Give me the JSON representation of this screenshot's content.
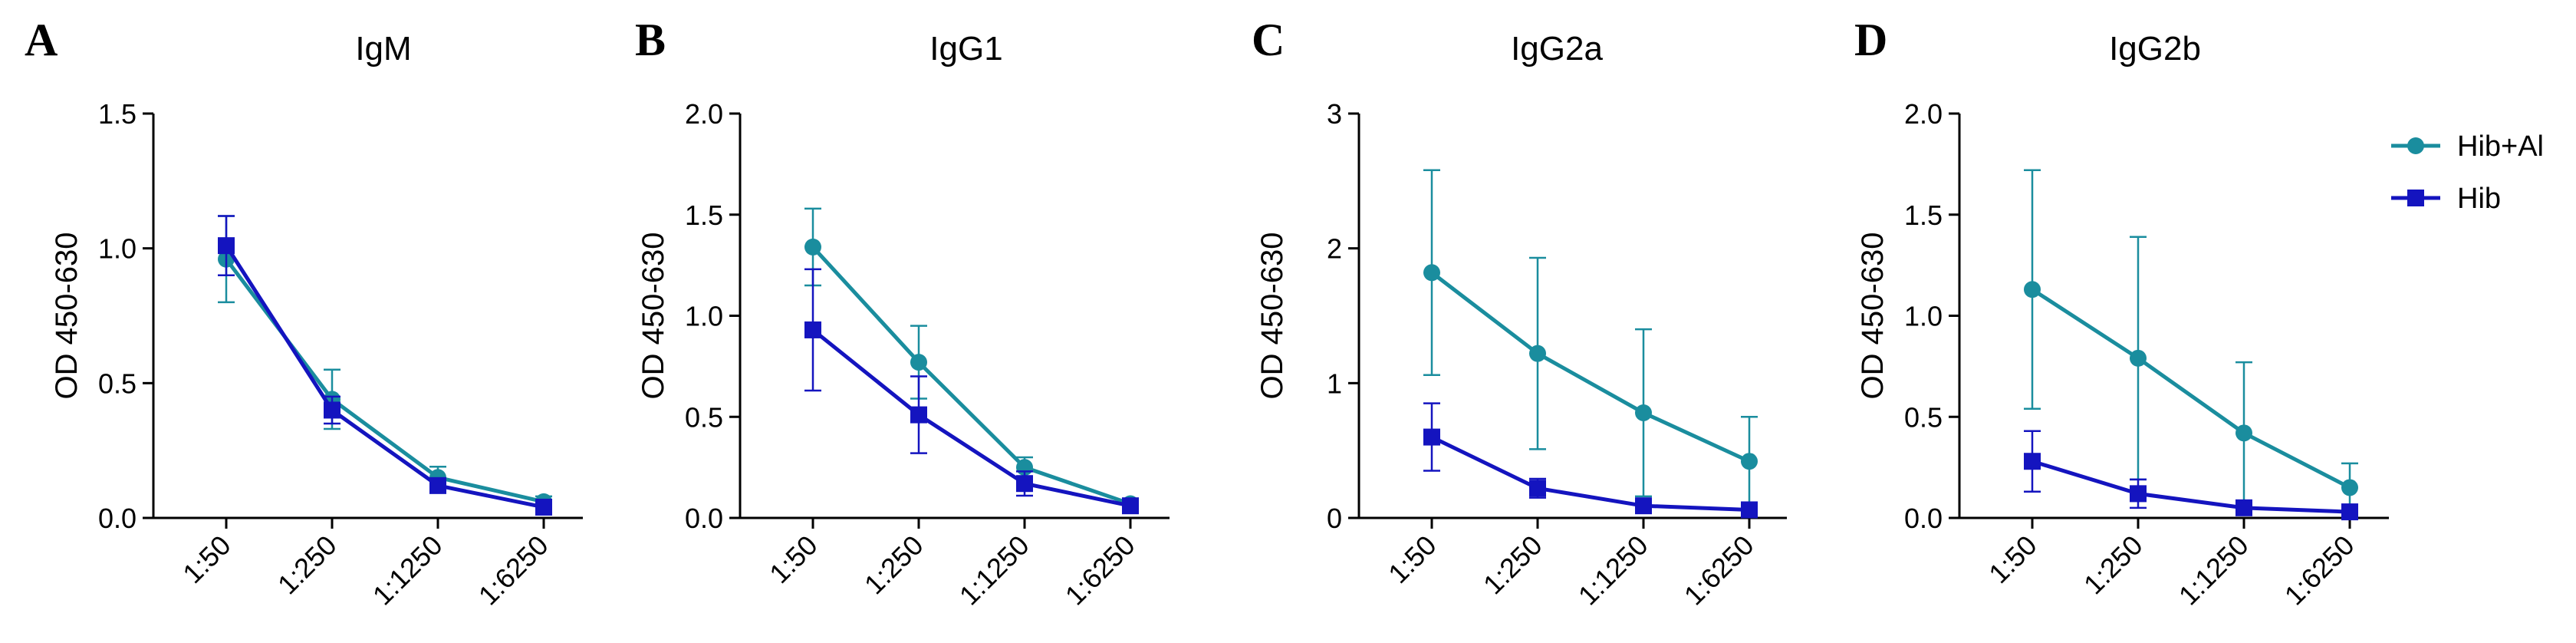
{
  "legend": {
    "entries": [
      {
        "label": "Hib+Al",
        "color": "#1a8d9e",
        "marker": "circle"
      },
      {
        "label": "Hib",
        "color": "#1414bf",
        "marker": "square"
      }
    ]
  },
  "chart_data": [
    {
      "panel": "A",
      "type": "line",
      "title": "IgM",
      "ylabel": "OD 450-630",
      "xlabel": "",
      "categories": [
        "1:50",
        "1:250",
        "1:1250",
        "1:6250"
      ],
      "ylim": [
        0,
        1.5
      ],
      "yticks": [
        0,
        0.5,
        1.0,
        1.5
      ],
      "ytick_labels": [
        "0.0",
        "0.5",
        "1.0",
        "1.5"
      ],
      "series": [
        {
          "name": "Hib+Al",
          "color": "#1a8d9e",
          "marker": "circle",
          "values": [
            0.96,
            0.44,
            0.15,
            0.06
          ],
          "errors": [
            0.16,
            0.11,
            0.04,
            0.02
          ]
        },
        {
          "name": "Hib",
          "color": "#1414bf",
          "marker": "square",
          "values": [
            1.01,
            0.4,
            0.12,
            0.04
          ],
          "errors": [
            0.11,
            0.05,
            0.02,
            0.01
          ]
        }
      ]
    },
    {
      "panel": "B",
      "type": "line",
      "title": "IgG1",
      "ylabel": "OD 450-630",
      "xlabel": "",
      "categories": [
        "1:50",
        "1:250",
        "1:1250",
        "1:6250"
      ],
      "ylim": [
        0,
        2.0
      ],
      "yticks": [
        0,
        0.5,
        1.0,
        1.5,
        2.0
      ],
      "ytick_labels": [
        "0.0",
        "0.5",
        "1.0",
        "1.5",
        "2.0"
      ],
      "series": [
        {
          "name": "Hib+Al",
          "color": "#1a8d9e",
          "marker": "circle",
          "values": [
            1.34,
            0.77,
            0.25,
            0.07
          ],
          "errors": [
            0.19,
            0.18,
            0.05,
            0.01
          ]
        },
        {
          "name": "Hib",
          "color": "#1414bf",
          "marker": "square",
          "values": [
            0.93,
            0.51,
            0.17,
            0.06
          ],
          "errors": [
            0.3,
            0.19,
            0.06,
            0.01
          ]
        }
      ]
    },
    {
      "panel": "C",
      "type": "line",
      "title": "IgG2a",
      "ylabel": "OD 450-630",
      "xlabel": "",
      "categories": [
        "1:50",
        "1:250",
        "1:1250",
        "1:6250"
      ],
      "ylim": [
        0,
        3
      ],
      "yticks": [
        0,
        1,
        2,
        3
      ],
      "ytick_labels": [
        "0",
        "1",
        "2",
        "3"
      ],
      "series": [
        {
          "name": "Hib+Al",
          "color": "#1a8d9e",
          "marker": "circle",
          "values": [
            1.82,
            1.22,
            0.78,
            0.42
          ],
          "errors": [
            0.76,
            0.71,
            0.62,
            0.33
          ]
        },
        {
          "name": "Hib",
          "color": "#1414bf",
          "marker": "square",
          "values": [
            0.6,
            0.22,
            0.09,
            0.06
          ],
          "errors": [
            0.25,
            0.07,
            0.04,
            0.02
          ]
        }
      ]
    },
    {
      "panel": "D",
      "type": "line",
      "title": "IgG2b",
      "ylabel": "OD 450-630",
      "xlabel": "",
      "categories": [
        "1:50",
        "1:250",
        "1:1250",
        "1:6250"
      ],
      "ylim": [
        0,
        2.0
      ],
      "yticks": [
        0,
        0.5,
        1.0,
        1.5,
        2.0
      ],
      "ytick_labels": [
        "0.0",
        "0.5",
        "1.0",
        "1.5",
        "2.0"
      ],
      "series": [
        {
          "name": "Hib+Al",
          "color": "#1a8d9e",
          "marker": "circle",
          "values": [
            1.13,
            0.79,
            0.42,
            0.15
          ],
          "errors": [
            0.59,
            0.6,
            0.35,
            0.12
          ]
        },
        {
          "name": "Hib",
          "color": "#1414bf",
          "marker": "square",
          "values": [
            0.28,
            0.12,
            0.05,
            0.03
          ],
          "errors": [
            0.15,
            0.07,
            0.02,
            0.01
          ]
        }
      ]
    }
  ]
}
